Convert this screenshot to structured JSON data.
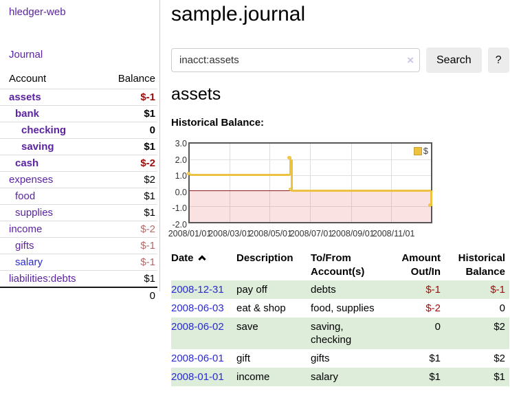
{
  "sidebar": {
    "brand": "hledger-web",
    "nav": {
      "journal": "Journal"
    },
    "account_table": {
      "headers": {
        "account": "Account",
        "balance": "Balance"
      },
      "rows": [
        {
          "name": "assets",
          "balance": "$-1",
          "depth": 1,
          "active": true
        },
        {
          "name": "bank",
          "balance": "$1",
          "depth": 2,
          "active": true
        },
        {
          "name": "checking",
          "balance": "0",
          "depth": 3,
          "active": true
        },
        {
          "name": "saving",
          "balance": "$1",
          "depth": 3,
          "active": true
        },
        {
          "name": "cash",
          "balance": "$-2",
          "depth": 2,
          "active": true
        },
        {
          "name": "expenses",
          "balance": "$2",
          "depth": 1,
          "active": false
        },
        {
          "name": "food",
          "balance": "$1",
          "depth": 2,
          "active": false
        },
        {
          "name": "supplies",
          "balance": "$1",
          "depth": 2,
          "active": false
        },
        {
          "name": "income",
          "balance": "$-2",
          "depth": 1,
          "active": false
        },
        {
          "name": "gifts",
          "balance": "$-1",
          "depth": 2,
          "active": false
        },
        {
          "name": "salary",
          "balance": "$-1",
          "depth": 2,
          "active": false,
          "unvisited": true
        },
        {
          "name": "liabilities:debts",
          "balance": "$1",
          "depth": 1,
          "active": false
        }
      ],
      "total": "0"
    }
  },
  "header": {
    "title": "sample.journal"
  },
  "search": {
    "value": "inacct:assets",
    "clear_icon": "×",
    "button": "Search",
    "help_button": "?"
  },
  "account_page": {
    "title": "assets",
    "chart_label": "Historical Balance:"
  },
  "chart_data": {
    "type": "line",
    "step": true,
    "title": "Historical Balance",
    "series": [
      {
        "name": "$",
        "color": "#edc240",
        "points": [
          [
            "2008-01-01",
            1
          ],
          [
            "2008-06-01",
            2
          ],
          [
            "2008-06-02",
            2
          ],
          [
            "2008-06-03",
            0
          ],
          [
            "2008-12-31",
            -1
          ]
        ]
      }
    ],
    "xlim": [
      "2008-01-01",
      "2008-12-31"
    ],
    "ylim": [
      -2,
      3
    ],
    "yticks": [
      3,
      2,
      1,
      0,
      -1,
      -2
    ],
    "ytick_labels": [
      "3.0",
      "2.0",
      "1.0",
      "0.0",
      "-1.0",
      "-2.0"
    ],
    "xticks": [
      "2008-01-01",
      "2008-03-01",
      "2008-05-01",
      "2008-07-01",
      "2008-09-01",
      "2008-11-01"
    ],
    "xtick_labels": [
      "2008/01/01",
      "2008/03/01",
      "2008/05/01",
      "2008/07/01",
      "2008/09/01",
      "2008/11/01"
    ],
    "legend": {
      "label": "$",
      "position": "top-right"
    },
    "grid": true,
    "negative_region_color": "#f9dede",
    "zero_line_color": "#8c1d1d"
  },
  "transactions": {
    "headers": {
      "date": {
        "lines": [
          "Date"
        ],
        "sort": "ascending"
      },
      "description": {
        "lines": [
          "Description"
        ]
      },
      "accounts": {
        "lines": [
          "To/From",
          "Account(s)"
        ]
      },
      "amount": {
        "lines": [
          "Amount",
          "Out/In"
        ]
      },
      "balance": {
        "lines": [
          "Historical",
          "Balance"
        ]
      }
    },
    "rows": [
      {
        "date": "2008-12-31",
        "description": "pay off",
        "accounts": [
          "debts"
        ],
        "amount": "$-1",
        "balance": "$-1"
      },
      {
        "date": "2008-06-03",
        "description": "eat & shop",
        "accounts": [
          "food, supplies"
        ],
        "amount": "$-2",
        "balance": "0"
      },
      {
        "date": "2008-06-02",
        "description": "save",
        "accounts": [
          "saving,",
          "checking"
        ],
        "amount": "0",
        "balance": "$2"
      },
      {
        "date": "2008-06-01",
        "description": "gift",
        "accounts": [
          "gifts"
        ],
        "amount": "$1",
        "balance": "$2"
      },
      {
        "date": "2008-01-01",
        "description": "income",
        "accounts": [
          "salary"
        ],
        "amount": "$1",
        "balance": "$1"
      }
    ]
  },
  "colors": {
    "link_purple": "#5b23a1",
    "link_blue": "#2a2ad5",
    "negative_strong": "#9d0c0c",
    "negative_soft": "#b36b6b",
    "row_stripe_green": "#ddedd9",
    "chart_gold": "#edc240"
  }
}
